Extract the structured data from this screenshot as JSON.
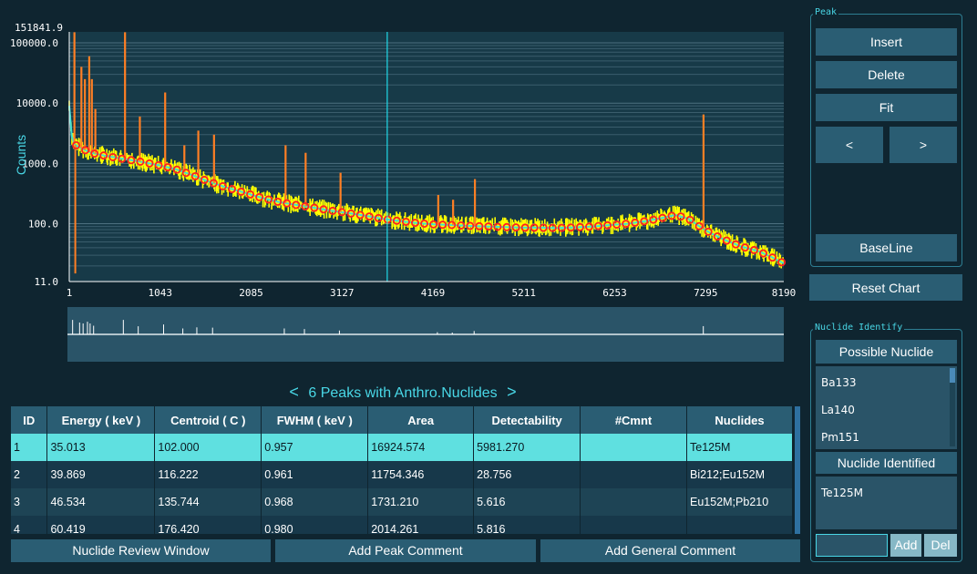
{
  "chart": {
    "ylabel": "Counts",
    "y_max_label": "151841.9",
    "y_ticks": [
      "100000.0",
      "10000.0",
      "1000.0",
      "100.0",
      "11.0"
    ],
    "x_ticks": [
      "1",
      "1043",
      "2085",
      "3127",
      "4169",
      "5211",
      "6253",
      "7295",
      "8190"
    ],
    "colors": {
      "spectrum": "#ffff00",
      "peak": "#ff7f24",
      "baseline": "#40e0d0",
      "marker": "#ff2020",
      "cursor": "#20d8e8"
    }
  },
  "chart_data": {
    "type": "line",
    "title": "",
    "xlabel": "",
    "ylabel": "Counts",
    "x_range": [
      1,
      8190
    ],
    "y_range": [
      11.0,
      151841.9
    ],
    "y_scale": "log",
    "cursor_channel": 3645,
    "series": [
      {
        "kind": "spectrum",
        "x": [
          1,
          30,
          60,
          100,
          150,
          250,
          400,
          600,
          800,
          1000,
          1200,
          1400,
          1600,
          1800,
          2000,
          2200,
          2400,
          2600,
          2800,
          3000,
          3200,
          3400,
          3600,
          3800,
          4000,
          4200,
          4400,
          4600,
          4800,
          5000,
          5200,
          5400,
          5600,
          5800,
          6000,
          6200,
          6400,
          6600,
          6800,
          6950,
          7100,
          7200,
          7350,
          7500,
          7700,
          7900,
          8050,
          8190
        ],
        "y": [
          9000,
          2800,
          2100,
          1900,
          1750,
          1500,
          1350,
          1200,
          1080,
          950,
          820,
          650,
          500,
          400,
          330,
          270,
          230,
          205,
          185,
          165,
          150,
          135,
          120,
          110,
          102,
          97,
          95,
          92,
          90,
          88,
          86,
          86,
          85,
          87,
          90,
          95,
          100,
          110,
          125,
          140,
          120,
          95,
          70,
          55,
          42,
          35,
          28,
          22
        ]
      },
      {
        "kind": "peaks",
        "x": [
          60,
          140,
          180,
          230,
          260,
          300,
          640,
          810,
          1100,
          1320,
          1480,
          1660,
          2480,
          2710,
          3110,
          4230,
          4400,
          4650,
          7270
        ],
        "y": [
          150000,
          40000,
          25000,
          60000,
          25000,
          8000,
          150000,
          6000,
          15000,
          2000,
          3500,
          3000,
          2000,
          1500,
          700,
          300,
          250,
          550,
          6500
        ]
      }
    ]
  },
  "table": {
    "title": "6 Peaks with Anthro.Nuclides",
    "prev_label": "<",
    "next_label": ">",
    "columns": [
      "ID",
      "Energy ( keV )",
      "Centroid ( C )",
      "FWHM ( keV )",
      "Area",
      "Detectability",
      "#Cmnt",
      "Nuclides"
    ],
    "rows": [
      [
        "1",
        "35.013",
        "102.000",
        "0.957",
        "16924.574",
        "5981.270",
        "",
        "Te125M"
      ],
      [
        "2",
        "39.869",
        "116.222",
        "0.961",
        "11754.346",
        "28.756",
        "",
        "Bi212;Eu152M"
      ],
      [
        "3",
        "46.534",
        "135.744",
        "0.968",
        "1731.210",
        "5.616",
        "",
        "Eu152M;Pb210"
      ],
      [
        "4",
        "60.419",
        "176.420",
        "0.980",
        "2014.261",
        "5.816",
        "",
        ""
      ]
    ]
  },
  "bottom_buttons": {
    "review": "Nuclide Review Window",
    "peak_comment": "Add Peak Comment",
    "general_comment": "Add General Comment"
  },
  "peak_panel": {
    "title": "Peak",
    "insert": "Insert",
    "delete": "Delete",
    "fit": "Fit",
    "prev": "<",
    "next": ">",
    "baseline": "BaseLine"
  },
  "reset_chart": "Reset Chart",
  "nuclide_panel": {
    "title": "Nuclide Identify",
    "possible_label": "Possible Nuclide",
    "possible": [
      "Ba133",
      "La140",
      "Pm151"
    ],
    "identified_label": "Nuclide Identified",
    "identified": [
      "Te125M"
    ],
    "add": "Add",
    "del": "Del",
    "input_value": ""
  }
}
